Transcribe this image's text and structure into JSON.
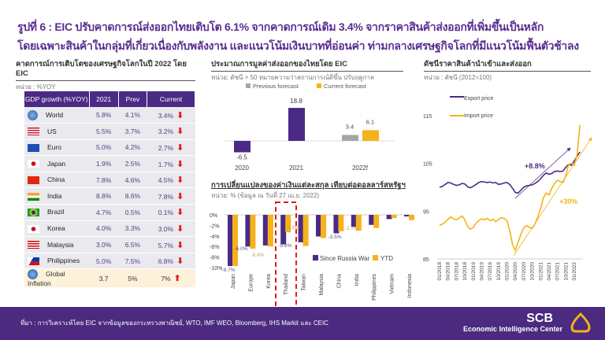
{
  "title": {
    "line1": "รูปที่ 6 : EIC ปรับคาดการณ์ส่งออกไทยเติบโต 6.1% จากคาดการณ์เดิม 3.4% จากราคาสินค้าส่งออกที่เพิ่มขึ้นเป็นหลัก",
    "line2": "โดยเฉพาะสินค้าในกลุ่มที่เกี่ยวเนื่องกับพลังงาน และแนวโน้มเงินบาทที่อ่อนค่า ท่ามกลางเศรษฐกิจโลกที่มีแนวโน้มฟื้นตัวช้าลง"
  },
  "gdp_panel": {
    "heading": "คาดการณ์การเติบโตของเศรษฐกิจโลกในปี 2022 โดย EIC",
    "unit": "หน่วย : %YOY",
    "columns": [
      "GDP growth (%YOY)",
      "2021",
      "Prev",
      "Current"
    ],
    "rows": [
      {
        "name": "World",
        "y2021": "5.8%",
        "prev": "4.1%",
        "current": "3.4%",
        "trend": "down",
        "icon": "globe-icon"
      },
      {
        "name": "US",
        "y2021": "5.5%",
        "prev": "3.7%",
        "current": "3.2%",
        "trend": "down",
        "icon": "flag-us-icon"
      },
      {
        "name": "Euro",
        "y2021": "5.0%",
        "prev": "4.2%",
        "current": "2.7%",
        "trend": "down",
        "icon": "flag-eu-icon"
      },
      {
        "name": "Japan",
        "y2021": "1.9%",
        "prev": "2.5%",
        "current": "1.7%",
        "trend": "down",
        "icon": "flag-japan-icon"
      },
      {
        "name": "China",
        "y2021": "7.8%",
        "prev": "4.6%",
        "current": "4.5%",
        "trend": "down",
        "icon": "flag-china-icon"
      },
      {
        "name": "India",
        "y2021": "8.8%",
        "prev": "8.6%",
        "current": "7.8%",
        "trend": "down",
        "icon": "flag-india-icon"
      },
      {
        "name": "Brazil",
        "y2021": "4.7%",
        "prev": "0.5%",
        "current": "0.1%",
        "trend": "down",
        "icon": "flag-brazil-icon"
      },
      {
        "name": "Korea",
        "y2021": "4.0%",
        "prev": "3.3%",
        "current": "3.0%",
        "trend": "down",
        "icon": "flag-korea-icon"
      },
      {
        "name": "Malaysia",
        "y2021": "3.0%",
        "prev": "6.5%",
        "current": "5.7%",
        "trend": "down",
        "icon": "flag-malaysia-icon"
      },
      {
        "name": "Philippines",
        "y2021": "5.0%",
        "prev": "7.5%",
        "current": "6.8%",
        "trend": "down",
        "icon": "flag-philippines-icon"
      },
      {
        "name": "Global Inflation",
        "y2021": "3.7",
        "prev": "5%",
        "current": "7%",
        "trend": "up",
        "icon": "globe-icon"
      }
    ],
    "colors": {
      "header": "#4b2a85",
      "down": "#e31b1b",
      "up": "#e31b1b"
    }
  },
  "chart_data": [
    {
      "type": "bar",
      "title": "ประมาณการมูลค่าส่งออกของไทยโดย EIC",
      "subtitle": "หน่วย: ดัชนี > 50 หมายความว่าสถานการณ์ดีขึ้น ปรับฤดูกาล",
      "categories": [
        "2020",
        "2021",
        "2022f"
      ],
      "series": [
        {
          "name": "Previous forecast",
          "values": [
            null,
            null,
            3.4
          ],
          "color": "#a6a6a6"
        },
        {
          "name": "Current forecast",
          "values": [
            null,
            null,
            6.1
          ],
          "color": "#f5b21a"
        },
        {
          "values": [
            -6.5,
            18.8,
            null
          ],
          "color": "#4b2a85"
        }
      ],
      "data_labels": [
        "-6.5",
        "18.8",
        "3.4",
        "6.1"
      ],
      "legend": "top"
    },
    {
      "type": "bar",
      "title": "การเปลี่ยนแปลงของค่าเงินแต่ละสกุล เทียบต่อดอลลาร์สหรัฐฯ",
      "subtitle": "หน่วย: % (ข้อมูล ณ วันที่ 27 เม.ย. 2022)",
      "categories": [
        "Japan",
        "Europe",
        "Korea",
        "Thailand",
        "Taiwan",
        "Malaysia",
        "China",
        "India",
        "Philippines",
        "Vietnam",
        "Indonesia"
      ],
      "series": [
        {
          "name": "Since Russia War",
          "values": [
            -9.7,
            -6.0,
            -5.8,
            -5.6,
            -5.2,
            -4.1,
            -3.5,
            -2.3,
            -1.9,
            -0.8,
            -0.3
          ],
          "color": "#4b2a85"
        },
        {
          "name": "YTD",
          "values": [
            -9.7,
            -6.4,
            -6.0,
            -3.3,
            -5.9,
            -4.4,
            -3.1,
            -3.0,
            -2.5,
            -0.6,
            -1.0
          ],
          "color": "#f5b21a"
        }
      ],
      "data_labels": [
        {
          "category": "Japan",
          "text": "-9.7%"
        },
        {
          "category": "Europe",
          "text": "-6.0%"
        },
        {
          "category": "Europe",
          "text": "-6.4%"
        },
        {
          "category": "Thailand",
          "text": "-5.6%"
        },
        {
          "category": "Thailand",
          "text": "-3.3%"
        },
        {
          "category": "China",
          "text": "-3.5%"
        },
        {
          "category": "China",
          "text": "-3.1%"
        }
      ],
      "yticks": [
        "0%",
        "-2%",
        "-4%",
        "-6%",
        "-8%",
        "-10%"
      ],
      "ylim": [
        -10,
        0
      ],
      "highlight": "Thailand",
      "highlight_color": "#e31b1b",
      "legend": "bottom-right"
    },
    {
      "type": "line",
      "title": "ดัชนีราคาสินค้านำเข้าและส่งออก",
      "subtitle": "หน่วย : ดัชนี (2012=100)",
      "x_start": "01/2018",
      "x_frequency": "monthly",
      "xticks": [
        "01/2018",
        "04/2018",
        "07/2018",
        "10/2018",
        "01/2019",
        "04/2019",
        "07/2019",
        "10/2019",
        "01/2020",
        "04/2020",
        "07/2020",
        "10/2020",
        "01/2021",
        "04/2021",
        "07/2021",
        "10/2021",
        "01/2022"
      ],
      "yticks": [
        "85",
        "95",
        "105",
        "115"
      ],
      "ylim": [
        85,
        115
      ],
      "series": [
        {
          "name": "Export price",
          "color": "#4b2a85",
          "values": [
            100.0,
            100.2,
            100.6,
            101.0,
            100.9,
            100.6,
            100.4,
            100.5,
            100.8,
            100.7,
            100.1,
            99.9,
            100.2,
            100.6,
            101.0,
            101.2,
            101.1,
            101.0,
            101.1,
            100.9,
            101.0,
            100.6,
            100.7,
            100.9,
            101.0,
            100.6,
            99.8,
            98.9,
            98.8,
            99.4,
            100.0,
            100.3,
            100.4,
            100.5,
            100.8,
            101.2,
            101.8,
            102.5,
            103.0,
            102.7,
            102.9,
            103.3,
            103.4,
            103.3,
            103.4,
            104.2,
            104.8,
            104.6,
            105.5,
            106.5,
            107.4
          ]
        },
        {
          "name": "Import price",
          "color": "#f5b21a",
          "values": [
            92.0,
            92.3,
            92.7,
            93.3,
            93.8,
            93.4,
            93.2,
            93.6,
            94.0,
            93.2,
            91.8,
            91.2,
            91.6,
            92.5,
            93.0,
            93.4,
            93.2,
            93.5,
            93.0,
            93.3,
            92.8,
            93.3,
            93.6,
            93.5,
            93.0,
            91.0,
            88.0,
            86.8,
            88.5,
            90.2,
            91.5,
            92.0,
            91.6,
            91.4,
            92.3,
            93.8,
            95.5,
            97.8,
            98.8,
            98.4,
            99.8,
            100.8,
            101.5,
            101.2,
            101.0,
            102.5,
            104.8,
            105.0,
            104.6,
            106.8,
            113.0
          ]
        }
      ],
      "annotations": [
        {
          "text": "+8.8%",
          "color": "#4b2a85"
        },
        {
          "text": "+30%",
          "color": "#f5b21a"
        }
      ],
      "legend": "top-left"
    }
  ],
  "footer": {
    "source": "ที่มา : การวิเคราะห์โดย EIC จากข้อมูลของกระทรวงพาณิชย์, WTO, IMF WEO, Bloomberg, IHS Markit และ CEIC",
    "logo_text": "SCB",
    "logo_sub": "Economic Intelligence Center"
  }
}
